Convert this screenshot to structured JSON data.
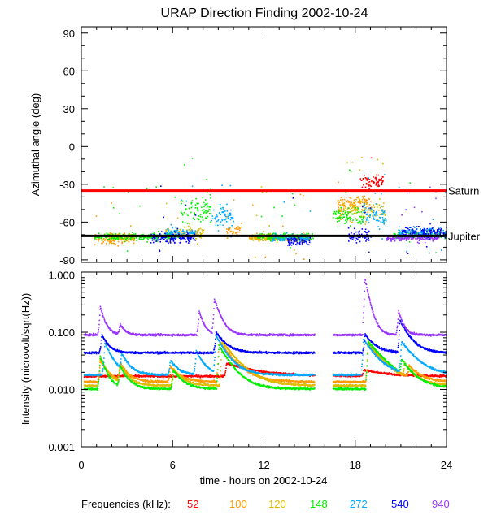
{
  "chart_data": [
    {
      "type": "scatter",
      "title": "URAP Direction Finding  2002-10-24",
      "xlabel": "",
      "ylabel": "Azimuthal angle (deg)",
      "xlim": [
        0,
        24
      ],
      "ylim": [
        -92,
        95
      ],
      "xticks": [
        0,
        6,
        12,
        18,
        24
      ],
      "yticks": [
        90,
        60,
        30,
        0,
        -30,
        -60,
        -90
      ],
      "reference_lines": [
        {
          "name": "Saturn",
          "y": -35,
          "color": "#ff0000"
        },
        {
          "name": "Jupiter",
          "y": -71,
          "color": "#000000"
        }
      ],
      "series": [
        {
          "name": "52",
          "color": "#ff0000",
          "segments": [
            [
              18.3,
              19.8,
              -27,
              5
            ]
          ]
        },
        {
          "name": "100",
          "color": "#ff9900",
          "segments": [
            [
              0.8,
              3.5,
              -73,
              4
            ],
            [
              9.5,
              10.5,
              -66,
              6
            ],
            [
              11.0,
              15.0,
              -72,
              3
            ],
            [
              16.8,
              19.0,
              -45,
              8
            ]
          ]
        },
        {
          "name": "120",
          "color": "#ddbb00",
          "segments": [
            [
              1.5,
              3.5,
              -71,
              3
            ],
            [
              5.5,
              8.0,
              -68,
              5
            ],
            [
              11.0,
              15.0,
              -72,
              3
            ],
            [
              16.8,
              20.0,
              -50,
              10
            ]
          ]
        },
        {
          "name": "148",
          "color": "#00ee00",
          "segments": [
            [
              0.8,
              6.5,
              -71,
              3
            ],
            [
              6.5,
              8.5,
              -50,
              12
            ],
            [
              11.5,
              15.2,
              -71,
              3
            ],
            [
              16.5,
              18.5,
              -55,
              8
            ],
            [
              20.5,
              24.0,
              -70,
              3
            ]
          ]
        },
        {
          "name": "272",
          "color": "#00aaff",
          "segments": [
            [
              5.5,
              7.5,
              -68,
              4
            ],
            [
              8.5,
              10.0,
              -55,
              10
            ],
            [
              12.5,
              15.0,
              -72,
              3
            ],
            [
              18.5,
              20.0,
              -55,
              10
            ],
            [
              20.8,
              24.0,
              -68,
              4
            ]
          ]
        },
        {
          "name": "540",
          "color": "#0000ff",
          "segments": [
            [
              4.5,
              7.5,
              -72,
              4
            ],
            [
              13.5,
              15.0,
              -75,
              4
            ],
            [
              17.5,
              19.0,
              -70,
              6
            ],
            [
              21.0,
              24.0,
              -68,
              5
            ]
          ]
        },
        {
          "name": "940",
          "color": "#9933ff",
          "segments": [
            [
              20.0,
              23.5,
              -72,
              3
            ]
          ]
        }
      ]
    },
    {
      "type": "scatter",
      "title": "",
      "xlabel": "time - hours on 2002-10-24",
      "ylabel": "Intensity (microvolt/sqrt(Hz))",
      "xlim": [
        0,
        24
      ],
      "ylim_log10": [
        -3.0,
        0.05
      ],
      "xticks": [
        0,
        6,
        12,
        18,
        24
      ],
      "xtick_labels": [
        "0",
        "6",
        "12",
        "18",
        "24"
      ],
      "yticks": [
        1.0,
        0.1,
        0.01,
        0.001
      ],
      "ytick_labels": [
        "1.000",
        "0.100",
        "0.010",
        "0.001"
      ],
      "data_gap_hours": [
        15.3,
        16.5
      ],
      "series": [
        {
          "name": "52",
          "color": "#ff0000",
          "baseline": 0.0175,
          "peaks": [
            [
              9.5,
              0.012,
              2.0
            ],
            [
              18.5,
              0.005,
              1.5
            ]
          ]
        },
        {
          "name": "100",
          "color": "#ff9900",
          "baseline": 0.014,
          "peaks": [
            [
              1.2,
              0.02,
              0.5
            ],
            [
              2.5,
              0.015,
              0.5
            ],
            [
              5.8,
              0.012,
              0.6
            ],
            [
              9.0,
              0.06,
              0.9
            ],
            [
              18.8,
              0.05,
              1.0
            ],
            [
              21.5,
              0.01,
              0.6
            ]
          ]
        },
        {
          "name": "120",
          "color": "#ddbb00",
          "baseline": 0.012,
          "peaks": [
            [
              1.2,
              0.025,
              0.5
            ],
            [
              2.5,
              0.015,
              0.5
            ],
            [
              6.0,
              0.012,
              0.6
            ],
            [
              9.2,
              0.06,
              1.0
            ],
            [
              18.8,
              0.06,
              1.0
            ],
            [
              21.2,
              0.012,
              0.6
            ]
          ]
        },
        {
          "name": "148",
          "color": "#00ee00",
          "baseline": 0.0105,
          "peaks": [
            [
              1.2,
              0.03,
              0.4
            ],
            [
              2.5,
              0.015,
              0.5
            ],
            [
              6.0,
              0.012,
              0.6
            ],
            [
              9.0,
              0.05,
              0.8
            ],
            [
              18.8,
              0.06,
              1.2
            ],
            [
              21.0,
              0.015,
              0.6
            ]
          ]
        },
        {
          "name": "272",
          "color": "#00aaff",
          "baseline": 0.0185,
          "peaks": [
            [
              1.5,
              0.05,
              0.5
            ],
            [
              2.6,
              0.02,
              0.5
            ],
            [
              5.8,
              0.015,
              0.5
            ],
            [
              7.5,
              0.03,
              0.5
            ],
            [
              8.8,
              0.07,
              0.7
            ],
            [
              18.5,
              0.06,
              0.8
            ],
            [
              21.0,
              0.05,
              0.9
            ]
          ]
        },
        {
          "name": "540",
          "color": "#0000ff",
          "baseline": 0.045,
          "peaks": [
            [
              1.3,
              0.05,
              0.4
            ],
            [
              8.8,
              0.06,
              0.6
            ],
            [
              18.6,
              0.05,
              0.6
            ],
            [
              20.9,
              0.12,
              0.6
            ]
          ]
        },
        {
          "name": "940",
          "color": "#9933ff",
          "baseline": 0.092,
          "peaks": [
            [
              1.2,
              0.2,
              0.3
            ],
            [
              2.5,
              0.05,
              0.3
            ],
            [
              7.7,
              0.15,
              0.3
            ],
            [
              8.7,
              0.3,
              0.4
            ],
            [
              18.6,
              0.8,
              0.3
            ],
            [
              20.8,
              0.15,
              0.3
            ]
          ]
        }
      ]
    }
  ],
  "legend": {
    "label": "Frequencies (kHz):",
    "items": [
      {
        "text": "52",
        "color": "#ff0000"
      },
      {
        "text": "100",
        "color": "#ff9900"
      },
      {
        "text": "120",
        "color": "#ddbb00"
      },
      {
        "text": "148",
        "color": "#00ee00"
      },
      {
        "text": "272",
        "color": "#00aaff"
      },
      {
        "text": "540",
        "color": "#0000ff"
      },
      {
        "text": "940",
        "color": "#9933ff"
      }
    ]
  }
}
